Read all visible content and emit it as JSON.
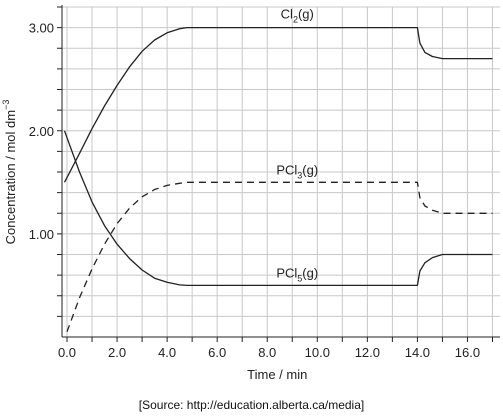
{
  "chart_data": {
    "type": "line",
    "xlabel": "Time / min",
    "ylabel_main": "Concentration / mol dm",
    "ylabel_sup": "−3",
    "xlim": [
      -0.2,
      17.3
    ],
    "ylim": [
      0.0,
      3.2
    ],
    "x_ticks": [
      "0.0",
      "2.0",
      "4.0",
      "6.0",
      "8.0",
      "10.0",
      "12.0",
      "14.0",
      "16.0"
    ],
    "x_tick_values": [
      0,
      2,
      4,
      6,
      8,
      10,
      12,
      14,
      16
    ],
    "y_ticks": [
      "1.00",
      "2.00",
      "3.00"
    ],
    "y_tick_values": [
      1.0,
      2.0,
      3.0
    ],
    "grid": true,
    "series": [
      {
        "name": "Cl2(g)",
        "label_main": "Cl",
        "label_sub": "2",
        "label_tail": "(g)",
        "dashed": false,
        "x": [
          -0.1,
          0.5,
          1.0,
          1.5,
          2.0,
          2.5,
          3.0,
          3.5,
          4.0,
          4.5,
          4.8,
          5.0,
          6.0,
          8.0,
          10.0,
          12.0,
          14.0,
          14.1,
          14.3,
          14.6,
          15.0,
          15.5,
          16.0,
          17.0
        ],
        "y": [
          1.5,
          1.78,
          2.02,
          2.24,
          2.44,
          2.62,
          2.77,
          2.88,
          2.95,
          2.99,
          3.0,
          3.0,
          3.0,
          3.0,
          3.0,
          3.0,
          3.0,
          2.85,
          2.76,
          2.72,
          2.7,
          2.7,
          2.7,
          2.7
        ]
      },
      {
        "name": "PCl3(g)",
        "label_main": "PCl",
        "label_sub": "3",
        "label_tail": "(g)",
        "dashed": true,
        "x": [
          0.0,
          0.5,
          1.0,
          1.5,
          2.0,
          2.5,
          3.0,
          3.5,
          4.0,
          4.5,
          4.8,
          5.0,
          6.0,
          8.0,
          10.0,
          12.0,
          14.0,
          14.1,
          14.3,
          14.6,
          15.0,
          15.5,
          16.0,
          17.0
        ],
        "y": [
          0.05,
          0.38,
          0.66,
          0.9,
          1.1,
          1.25,
          1.36,
          1.43,
          1.47,
          1.49,
          1.5,
          1.5,
          1.5,
          1.5,
          1.5,
          1.5,
          1.5,
          1.35,
          1.27,
          1.23,
          1.2,
          1.2,
          1.2,
          1.2
        ]
      },
      {
        "name": "PCl5(g)",
        "label_main": "PCl",
        "label_sub": "5",
        "label_tail": "(g)",
        "dashed": false,
        "x": [
          -0.1,
          0.5,
          1.0,
          1.5,
          2.0,
          2.5,
          3.0,
          3.5,
          4.0,
          4.5,
          4.8,
          5.0,
          6.0,
          8.0,
          10.0,
          12.0,
          14.0,
          14.1,
          14.3,
          14.6,
          15.0,
          15.5,
          16.0,
          17.0
        ],
        "y": [
          2.0,
          1.6,
          1.31,
          1.08,
          0.9,
          0.76,
          0.65,
          0.57,
          0.53,
          0.505,
          0.5,
          0.5,
          0.5,
          0.5,
          0.5,
          0.5,
          0.5,
          0.64,
          0.72,
          0.77,
          0.8,
          0.8,
          0.8,
          0.8
        ]
      }
    ]
  },
  "source": "[Source: http://education.alberta.ca/media]"
}
